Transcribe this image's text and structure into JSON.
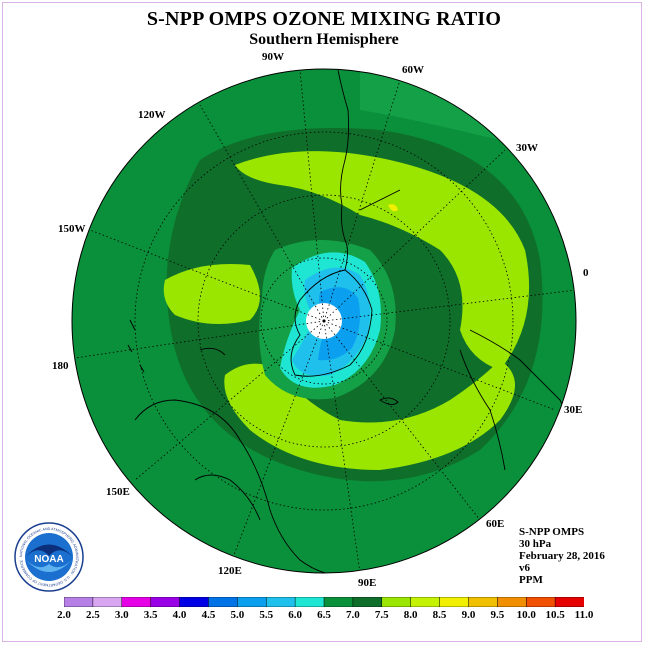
{
  "title": "S-NPP OMPS OZONE MIXING RATIO",
  "subtitle": "Southern Hemisphere",
  "longitude_labels": [
    "90W",
    "60W",
    "120W",
    "30W",
    "150W",
    "0",
    "180",
    "30E",
    "150E",
    "60E",
    "120E",
    "90E"
  ],
  "info": {
    "instrument": "S-NPP OMPS",
    "level": "30 hPa",
    "date": "February 28, 2016",
    "version": "v6",
    "units": "PPM"
  },
  "colorbar": {
    "labels": [
      "2.0",
      "2.5",
      "3.0",
      "3.5",
      "4.0",
      "4.5",
      "5.0",
      "5.5",
      "6.0",
      "6.5",
      "7.0",
      "7.5",
      "8.0",
      "8.5",
      "9.0",
      "9.5",
      "10.0",
      "10.5",
      "11.0"
    ],
    "colors": [
      "#b57fe6",
      "#d8a6f0",
      "#e600e6",
      "#9a00e6",
      "#0000e6",
      "#0073e6",
      "#0b9ff0",
      "#1fc0ec",
      "#1ee6d2",
      "#0a8f3a",
      "#0f6e2a",
      "#9be600",
      "#c4f200",
      "#f0f000",
      "#f0c000",
      "#f09000",
      "#f05000",
      "#e60000",
      "#8b5a3c"
    ]
  },
  "logo_text": "NOAA",
  "logo_ring_text": "NATIONAL OCEANIC AND ATMOSPHERIC ADMINISTRATION · U.S. DEPARTMENT OF COMMERCE"
}
